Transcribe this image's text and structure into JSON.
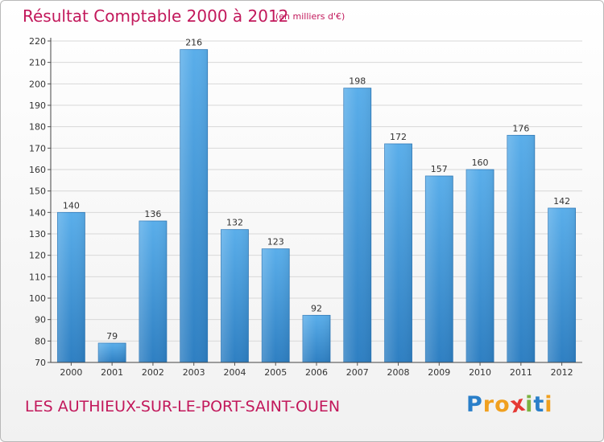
{
  "chart_data": {
    "type": "bar",
    "title": "Résultat Comptable 2000 à 2012",
    "subtitle": "(en milliers d'€)",
    "categories": [
      "2000",
      "2001",
      "2002",
      "2003",
      "2004",
      "2005",
      "2006",
      "2007",
      "2008",
      "2009",
      "2010",
      "2011",
      "2012"
    ],
    "values": [
      140,
      79,
      136,
      216,
      132,
      123,
      92,
      198,
      172,
      157,
      160,
      176,
      142
    ],
    "ylim": [
      70,
      220
    ],
    "yticks": [
      70,
      80,
      90,
      100,
      110,
      120,
      130,
      140,
      150,
      160,
      170,
      180,
      190,
      200,
      210,
      220
    ],
    "xlabel": "",
    "ylabel": "",
    "grid": true,
    "bar_color_top": "#5aaeea",
    "bar_color_bottom": "#2e7fc2"
  },
  "footer": {
    "place": "LES AUTHIEUX-SUR-LE-PORT-SAINT-OUEN",
    "logo_letters": [
      "P",
      "r",
      "o",
      "x",
      "i",
      "t",
      "i"
    ],
    "logo_colors": [
      "#2a7fc9",
      "#f0a020",
      "#f0a020",
      "#e53935",
      "#7cb342",
      "#2a7fc9",
      "#f0a020"
    ]
  },
  "colors": {
    "title": "#c2185b",
    "grid": "#d8d8d8",
    "axis_text": "#333333"
  }
}
